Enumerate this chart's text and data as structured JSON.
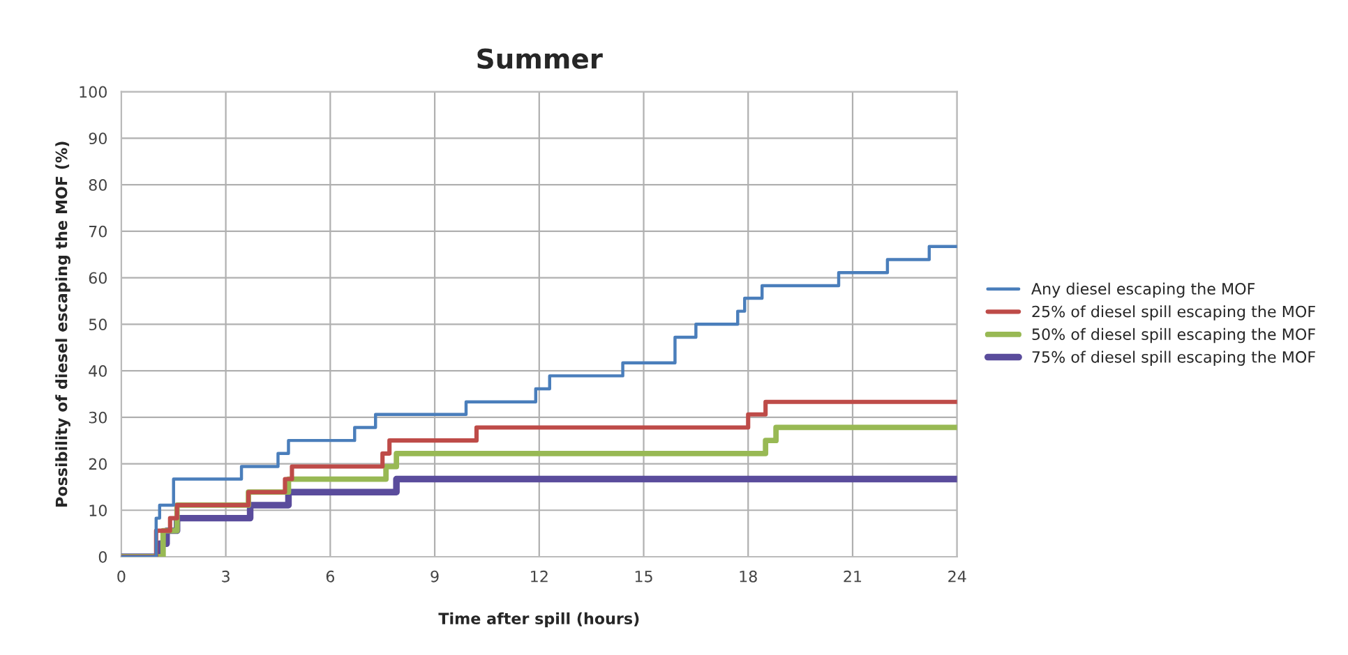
{
  "chart_data": {
    "type": "step",
    "title": "Summer",
    "xlabel": "Time after spill (hours)",
    "ylabel": "Possibility of diesel escaping the MOF (%)",
    "xlim": [
      0,
      24
    ],
    "xticks": [
      0,
      3,
      6,
      9,
      12,
      15,
      18,
      21,
      24
    ],
    "ylim": [
      0,
      100
    ],
    "yticks": [
      0,
      10,
      20,
      30,
      40,
      50,
      60,
      70,
      80,
      90,
      100
    ],
    "grid": true,
    "legend": "right",
    "line_style": "solid",
    "series": [
      {
        "name": "Any diesel escaping the MOF",
        "color": "#4a7ebb",
        "x": [
          0,
          1.0,
          1.1,
          1.5,
          3.45,
          4.5,
          4.8,
          6.7,
          7.3,
          9.9,
          11.9,
          12.3,
          14.4,
          15.9,
          16.5,
          17.7,
          17.9,
          18.4,
          20.6,
          22.0,
          23.2,
          24
        ],
        "values": [
          0,
          8.3,
          11.1,
          16.7,
          19.4,
          22.2,
          25,
          27.8,
          30.6,
          33.3,
          36.1,
          38.9,
          41.7,
          47.2,
          50,
          52.8,
          55.6,
          58.3,
          61.1,
          63.9,
          66.7,
          66.7
        ]
      },
      {
        "name": "25% of diesel spill escaping the MOF",
        "color": "#be4b48",
        "x": [
          0,
          1.0,
          1.4,
          1.6,
          3.65,
          4.7,
          4.9,
          7.5,
          7.7,
          10.2,
          18.0,
          18.5,
          24
        ],
        "values": [
          0,
          5.6,
          8.3,
          11.1,
          13.9,
          16.7,
          19.4,
          22.2,
          25,
          27.8,
          30.6,
          33.3,
          33.3
        ]
      },
      {
        "name": "50% of diesel spill escaping the MOF",
        "color": "#98b954",
        "x": [
          0,
          1.2,
          1.6,
          3.65,
          4.8,
          7.6,
          7.9,
          18.5,
          18.8,
          24
        ],
        "values": [
          0,
          5.6,
          11.1,
          13.9,
          16.7,
          19.4,
          22.2,
          25,
          27.8,
          27.8
        ]
      },
      {
        "name": "75% of diesel spill escaping the MOF",
        "color": "#5a4c9c",
        "x": [
          0,
          1.1,
          1.3,
          1.6,
          3.7,
          4.8,
          7.9,
          24
        ],
        "values": [
          0,
          2.8,
          5.6,
          8.3,
          11.1,
          13.9,
          16.7,
          16.7
        ]
      }
    ]
  }
}
